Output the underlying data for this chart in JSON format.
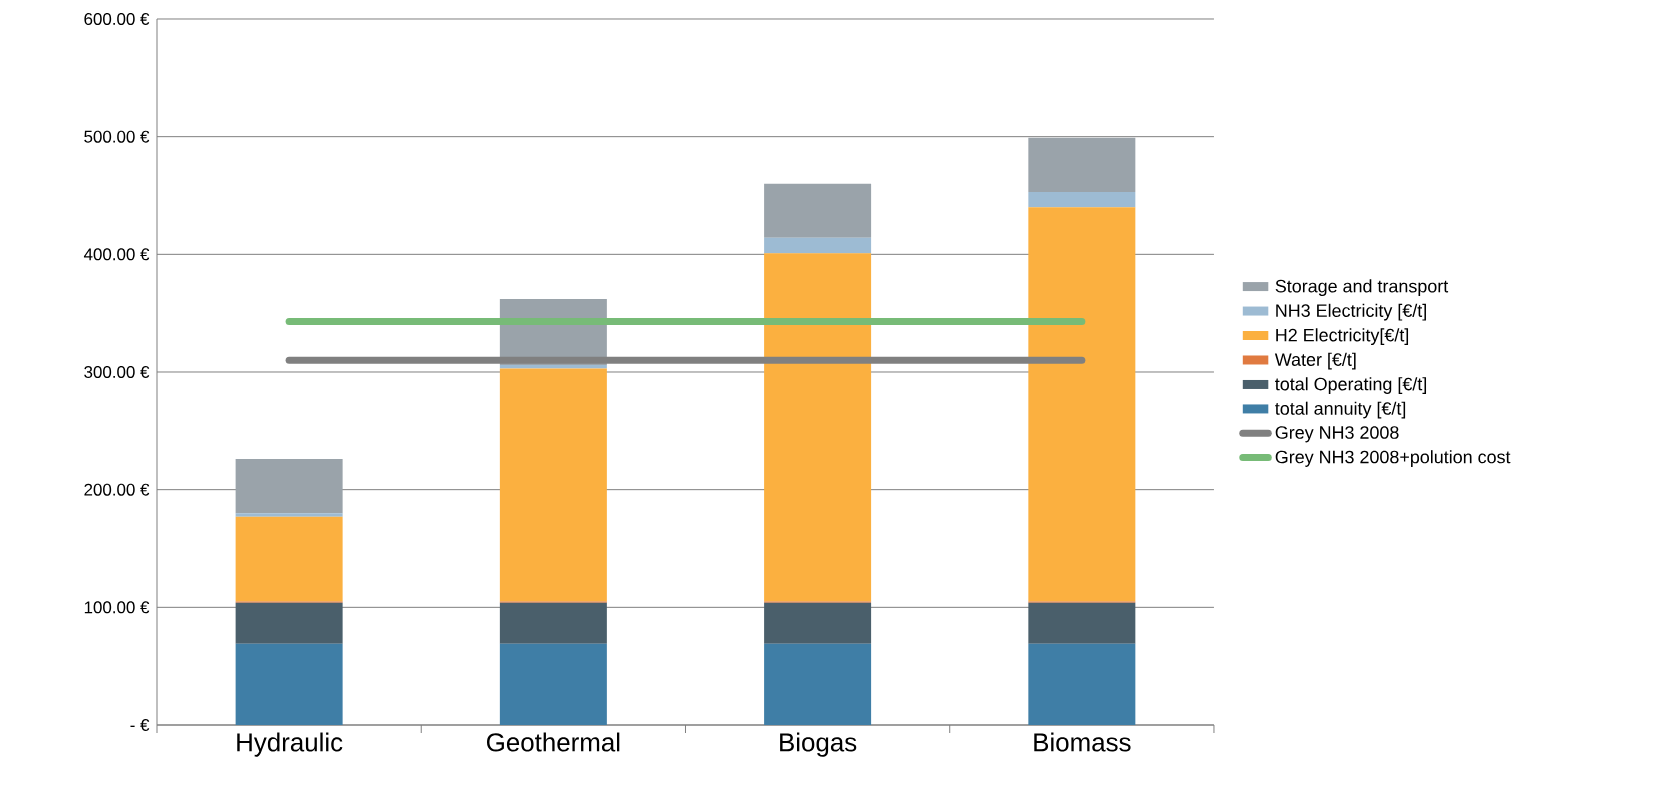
{
  "chart_data": {
    "type": "bar",
    "stacked": true,
    "categories": [
      "Hydraulic",
      "Geothermal",
      "Biogas",
      "Biomass"
    ],
    "series": [
      {
        "name": "total annuity [€/t]",
        "color": "#3f7ea6",
        "values": [
          69,
          69,
          69,
          69
        ]
      },
      {
        "name": "total Operating [€/t]",
        "color": "#4a5f6b",
        "values": [
          35,
          35,
          35,
          35
        ]
      },
      {
        "name": "Water [€/t]",
        "color": "#e07a40",
        "values": [
          1,
          1,
          1,
          1
        ]
      },
      {
        "name": "H2 Electricity[€/t]",
        "color": "#fbb040",
        "values": [
          72,
          198,
          296,
          335
        ]
      },
      {
        "name": "NH3 Electricity [€/t]",
        "color": "#9dbbd3",
        "values": [
          3,
          3,
          13,
          13
        ]
      },
      {
        "name": "Storage and transport",
        "color": "#9aa3aa",
        "values": [
          46,
          56,
          46,
          46
        ]
      },
      {
        "name": "Grey NH3 2008",
        "type": "line",
        "color": "#808080",
        "values": [
          310,
          310,
          310,
          310
        ]
      },
      {
        "name": "Grey NH3 2008+polution cost",
        "type": "line",
        "color": "#77bb77",
        "values": [
          343,
          343,
          343,
          343
        ]
      }
    ],
    "ylim": [
      0,
      600
    ],
    "yticks": [
      {
        "value": 0,
        "label": "-   €"
      },
      {
        "value": 100,
        "label": "100.00  €"
      },
      {
        "value": 200,
        "label": "200.00  €"
      },
      {
        "value": 300,
        "label": "300.00  €"
      },
      {
        "value": 400,
        "label": "400.00  €"
      },
      {
        "value": 500,
        "label": "500.00  €"
      },
      {
        "value": 600,
        "label": "600.00  €"
      }
    ],
    "grid": "y",
    "legend": "right"
  }
}
